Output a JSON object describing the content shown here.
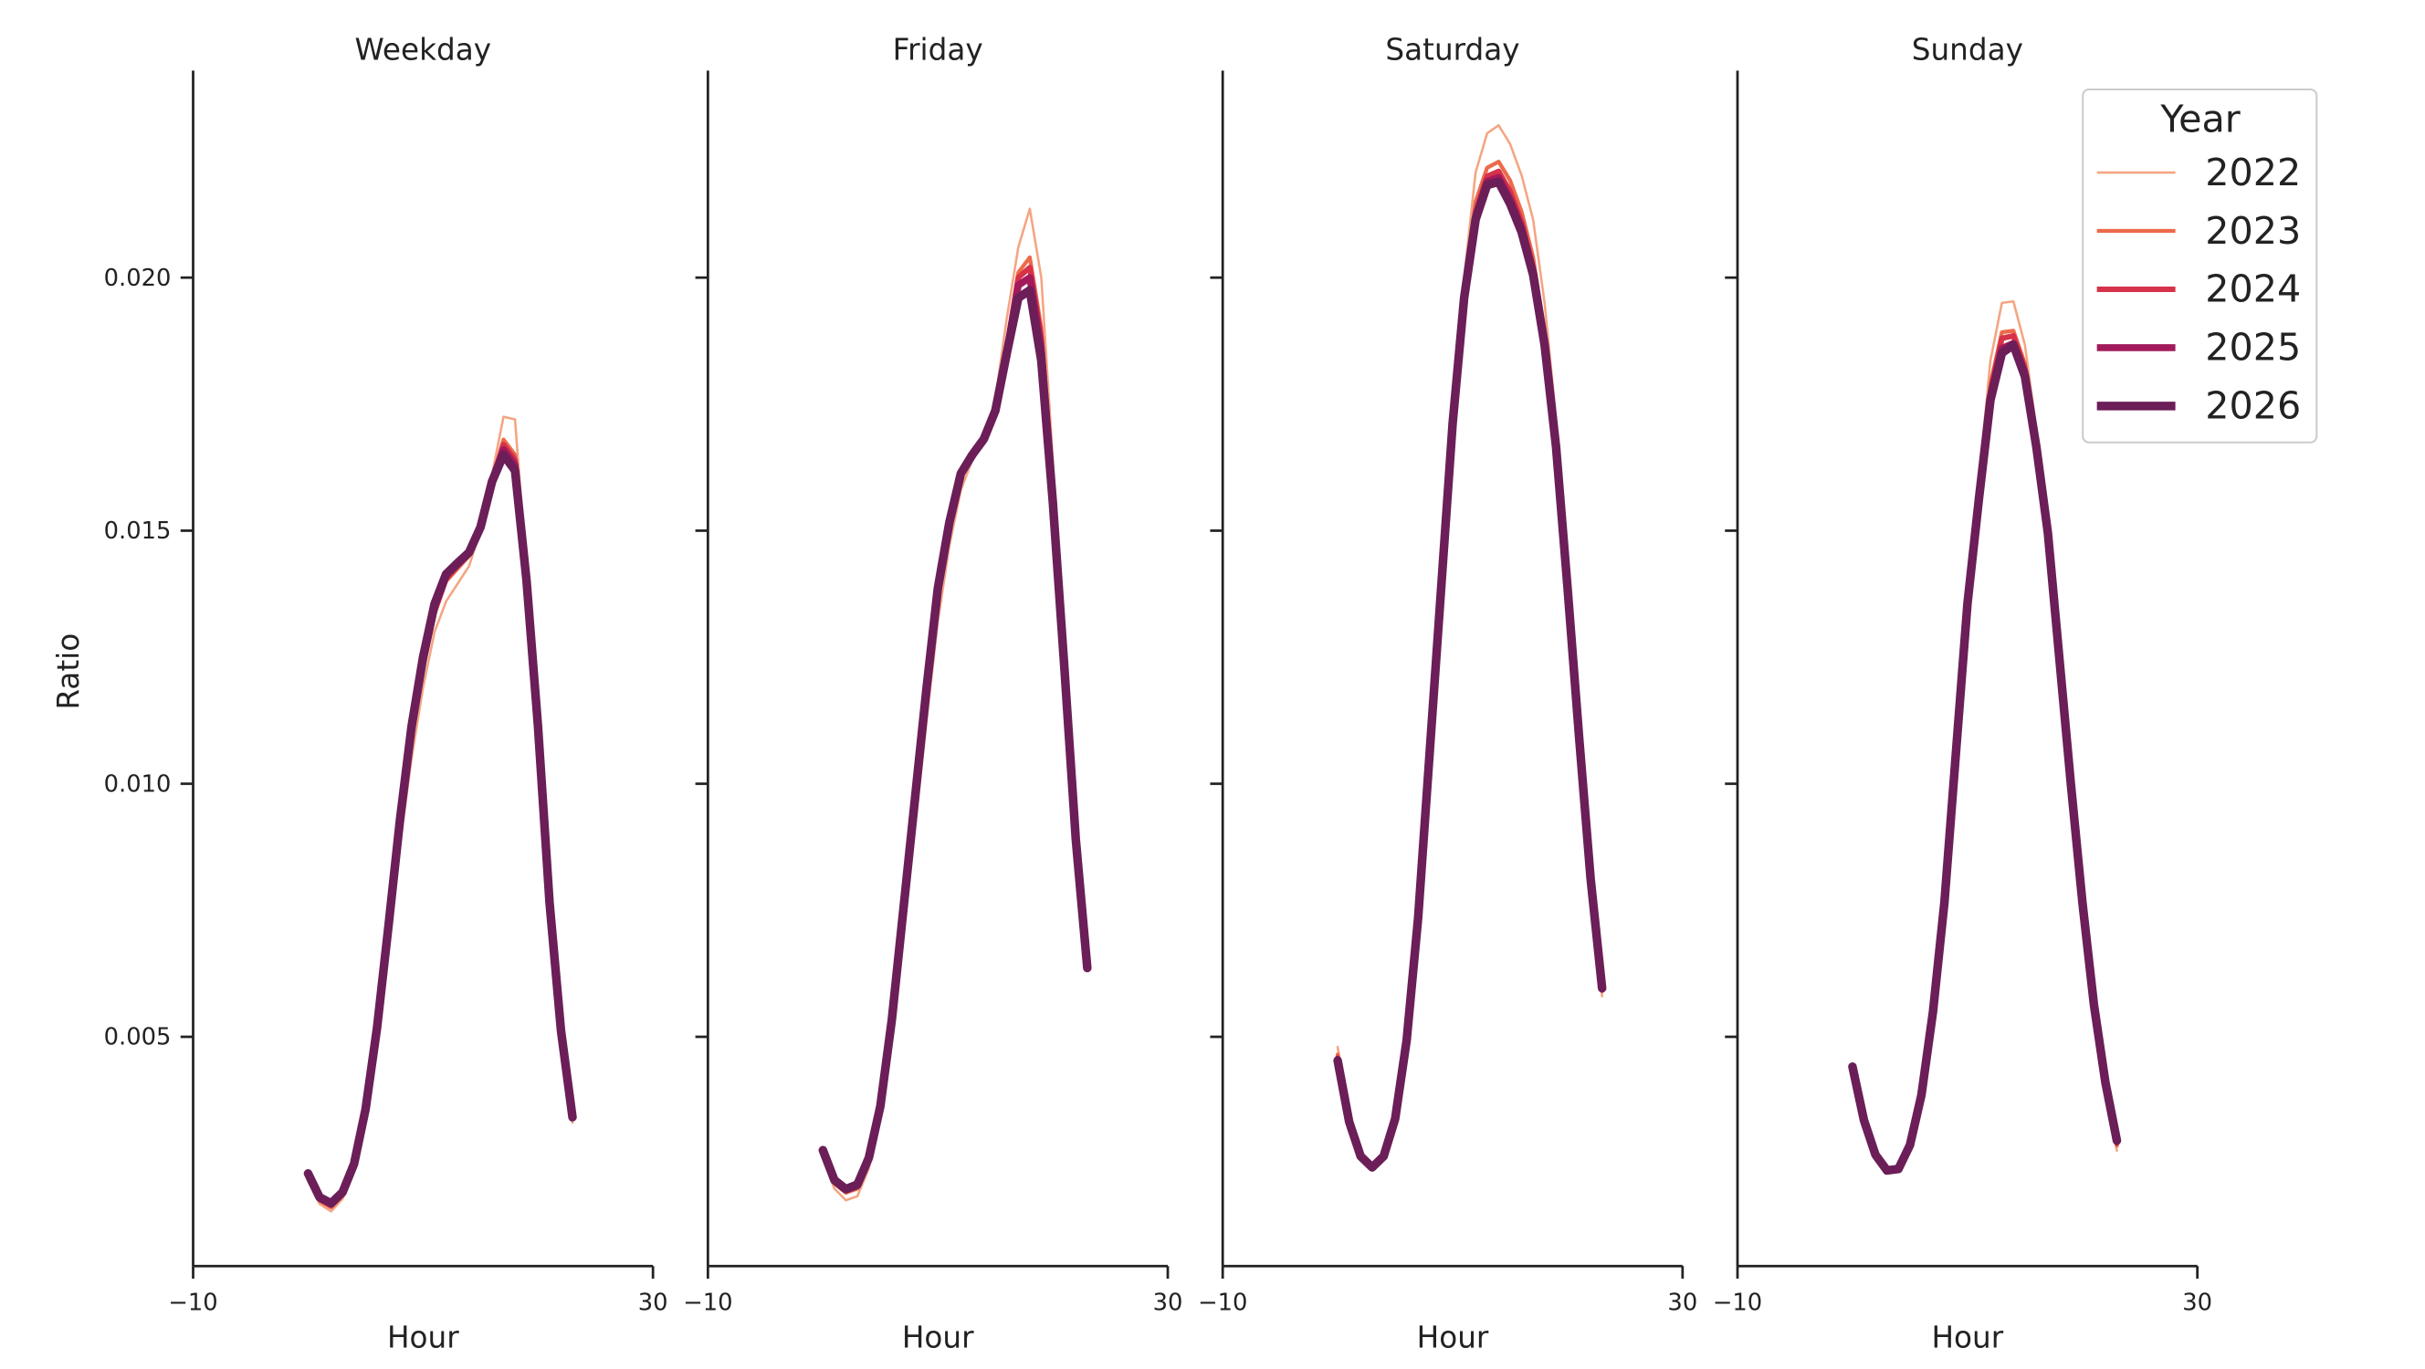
{
  "chart_data": [
    {
      "type": "line",
      "title": "Weekday",
      "xlabel": "Hour",
      "ylabel": "Ratio",
      "x": [
        0,
        1,
        2,
        3,
        4,
        5,
        6,
        7,
        8,
        9,
        10,
        11,
        12,
        13,
        14,
        15,
        16,
        17,
        18,
        19,
        20,
        21,
        22,
        23
      ],
      "xlim": [
        -10,
        30
      ],
      "xticks": [
        {
          "value": -10,
          "label": "−10"
        },
        30
      ],
      "ylim": [
        0.00047,
        0.02409
      ],
      "yticks": [
        0.005,
        {
          "value": 0.01,
          "label": "0.010"
        },
        0.015,
        {
          "value": 0.02,
          "label": "0.020"
        }
      ],
      "series": [
        {
          "name": "2022",
          "color": "#f4a582",
          "values": [
            0.00215,
            0.0017,
            0.00155,
            0.0018,
            0.00235,
            0.0034,
            0.0049,
            0.0068,
            0.0088,
            0.0105,
            0.0119,
            0.013,
            0.0136,
            0.01395,
            0.0143,
            0.015,
            0.0161,
            0.01725,
            0.0172,
            0.0142,
            0.0112,
            0.0077,
            0.0051,
            0.0033
          ]
        },
        {
          "name": "2023",
          "color": "#ec6a4b",
          "values": [
            0.00222,
            0.00176,
            0.00163,
            0.00186,
            0.00242,
            0.0035,
            0.00505,
            0.007,
            0.00905,
            0.01085,
            0.01225,
            0.01335,
            0.014,
            0.01425,
            0.0145,
            0.01505,
            0.016,
            0.0168,
            0.0165,
            0.0141,
            0.01115,
            0.00768,
            0.00512,
            0.00338
          ]
        },
        {
          "name": "2024",
          "color": "#d6324a",
          "values": [
            0.00226,
            0.0018,
            0.00167,
            0.0019,
            0.00246,
            0.00354,
            0.00512,
            0.00712,
            0.0092,
            0.011,
            0.01235,
            0.0134,
            0.01405,
            0.0143,
            0.01455,
            0.01506,
            0.01598,
            0.0167,
            0.0164,
            0.01405,
            0.01114,
            0.00767,
            0.00512,
            0.0034
          ]
        },
        {
          "name": "2025",
          "color": "#a21a5b",
          "values": [
            0.00228,
            0.00182,
            0.0017,
            0.00192,
            0.00248,
            0.00356,
            0.00516,
            0.00718,
            0.00928,
            0.0111,
            0.01245,
            0.0135,
            0.01412,
            0.01434,
            0.01456,
            0.01507,
            0.016,
            0.0166,
            0.0163,
            0.01403,
            0.01113,
            0.00766,
            0.00512,
            0.00341
          ]
        },
        {
          "name": "2026",
          "color": "#6b1e58",
          "values": [
            0.0023,
            0.00183,
            0.00171,
            0.00193,
            0.00249,
            0.00357,
            0.00518,
            0.0072,
            0.0093,
            0.01113,
            0.0125,
            0.01355,
            0.01414,
            0.01436,
            0.01457,
            0.01507,
            0.01597,
            0.0165,
            0.01619,
            0.01402,
            0.01113,
            0.00766,
            0.00512,
            0.00341
          ]
        }
      ]
    },
    {
      "type": "line",
      "title": "Friday",
      "xlabel": "Hour",
      "x": [
        0,
        1,
        2,
        3,
        4,
        5,
        6,
        7,
        8,
        9,
        10,
        11,
        12,
        13,
        14,
        15,
        16,
        17,
        18,
        19,
        20,
        21,
        22,
        23
      ],
      "xlim": [
        -10,
        30
      ],
      "xticks": [
        {
          "value": -10,
          "label": "−10"
        },
        30
      ],
      "series": [
        {
          "name": "2022",
          "color": "#f4a582",
          "values": [
            0.0026,
            0.002,
            0.00177,
            0.00185,
            0.0024,
            0.0034,
            0.00495,
            0.007,
            0.0091,
            0.0112,
            0.0132,
            0.0147,
            0.0158,
            0.0164,
            0.0168,
            0.0176,
            0.0192,
            0.0206,
            0.02136,
            0.02,
            0.0164,
            0.0127,
            0.0091,
            0.0064
          ]
        },
        {
          "name": "2023",
          "color": "#ec6a4b",
          "values": [
            0.0027,
            0.0021,
            0.00192,
            0.002,
            0.00254,
            0.00356,
            0.0052,
            0.00735,
            0.0095,
            0.01165,
            0.0137,
            0.01505,
            0.01605,
            0.01648,
            0.01681,
            0.01745,
            0.0187,
            0.0201,
            0.0204,
            0.019,
            0.0158,
            0.0124,
            0.00895,
            0.00637
          ]
        },
        {
          "name": "2024",
          "color": "#d6324a",
          "values": [
            0.00273,
            0.00214,
            0.00196,
            0.00204,
            0.00258,
            0.0036,
            0.00528,
            0.00744,
            0.0096,
            0.01176,
            0.01379,
            0.01511,
            0.0161,
            0.0165,
            0.01681,
            0.0174,
            0.0186,
            0.02,
            0.0202,
            0.0188,
            0.0157,
            0.01235,
            0.00892,
            0.00636
          ]
        },
        {
          "name": "2025",
          "color": "#a21a5b",
          "values": [
            0.00275,
            0.00216,
            0.00198,
            0.00206,
            0.0026,
            0.00362,
            0.00532,
            0.00748,
            0.00965,
            0.01182,
            0.01384,
            0.01514,
            0.01612,
            0.0165,
            0.01681,
            0.01738,
            0.01855,
            0.01985,
            0.02,
            0.0186,
            0.01562,
            0.01232,
            0.00891,
            0.00636
          ]
        },
        {
          "name": "2026",
          "color": "#6b1e58",
          "values": [
            0.00276,
            0.00217,
            0.00199,
            0.00208,
            0.00261,
            0.00363,
            0.00534,
            0.00751,
            0.00968,
            0.01185,
            0.01386,
            0.01516,
            0.01613,
            0.0165,
            0.01681,
            0.01737,
            0.01851,
            0.0196,
            0.01975,
            0.01836,
            0.01557,
            0.01231,
            0.0089,
            0.00636
          ]
        }
      ]
    },
    {
      "type": "line",
      "title": "Saturday",
      "xlabel": "Hour",
      "x": [
        0,
        1,
        2,
        3,
        4,
        5,
        6,
        7,
        8,
        9,
        10,
        11,
        12,
        13,
        14,
        15,
        16,
        17,
        18,
        19,
        20,
        21,
        22,
        23
      ],
      "xlim": [
        -10,
        30
      ],
      "xticks": [
        {
          "value": -10,
          "label": "−10"
        },
        30
      ],
      "series": [
        {
          "name": "2022",
          "color": "#f4a582",
          "values": [
            0.0048,
            0.0034,
            0.00268,
            0.00245,
            0.00266,
            0.0034,
            0.00495,
            0.00738,
            0.01065,
            0.01392,
            0.0173,
            0.02,
            0.02208,
            0.02285,
            0.02301,
            0.02264,
            0.02202,
            0.02115,
            0.0195,
            0.0172,
            0.0141,
            0.011,
            0.0081,
            0.0058
          ]
        },
        {
          "name": "2023",
          "color": "#ec6a4b",
          "values": [
            0.00465,
            0.00336,
            0.00266,
            0.00243,
            0.00265,
            0.00339,
            0.00494,
            0.00736,
            0.01063,
            0.01389,
            0.0172,
            0.01975,
            0.0215,
            0.02217,
            0.02229,
            0.02192,
            0.0213,
            0.0204,
            0.0189,
            0.0168,
            0.01392,
            0.01095,
            0.00812,
            0.0059
          ]
        },
        {
          "name": "2024",
          "color": "#d6324a",
          "values": [
            0.00458,
            0.00334,
            0.00265,
            0.00242,
            0.00264,
            0.00338,
            0.00493,
            0.00735,
            0.01062,
            0.01387,
            0.01715,
            0.01965,
            0.0213,
            0.022,
            0.0221,
            0.0217,
            0.0211,
            0.0202,
            0.01875,
            0.0167,
            0.01388,
            0.01093,
            0.00813,
            0.00594
          ]
        },
        {
          "name": "2025",
          "color": "#a21a5b",
          "values": [
            0.00455,
            0.00333,
            0.00264,
            0.00242,
            0.00264,
            0.00338,
            0.00493,
            0.00735,
            0.01061,
            0.01386,
            0.01713,
            0.01962,
            0.0212,
            0.0219,
            0.02198,
            0.02155,
            0.02098,
            0.02012,
            0.0187,
            0.01667,
            0.01387,
            0.01092,
            0.00813,
            0.00595
          ]
        },
        {
          "name": "2026",
          "color": "#6b1e58",
          "values": [
            0.00453,
            0.00332,
            0.00264,
            0.00242,
            0.00264,
            0.00338,
            0.00493,
            0.00735,
            0.01061,
            0.01386,
            0.01712,
            0.0196,
            0.02115,
            0.02183,
            0.02189,
            0.02146,
            0.0209,
            0.02006,
            0.01867,
            0.01665,
            0.01386,
            0.01092,
            0.00813,
            0.00596
          ]
        }
      ]
    },
    {
      "type": "line",
      "title": "Sunday",
      "xlabel": "Hour",
      "legend_title": "Year",
      "x": [
        0,
        1,
        2,
        3,
        4,
        5,
        6,
        7,
        8,
        9,
        10,
        11,
        12,
        13,
        14,
        15,
        16,
        17,
        18,
        19,
        20,
        21,
        22,
        23
      ],
      "xlim": [
        -10,
        30
      ],
      "xticks": [
        {
          "value": -10,
          "label": "−10"
        },
        30
      ],
      "series": [
        {
          "name": "2022",
          "color": "#f4a582",
          "values": [
            0.00445,
            0.00336,
            0.00267,
            0.00236,
            0.00239,
            0.00286,
            0.00385,
            0.00549,
            0.0077,
            0.0107,
            0.01375,
            0.016,
            0.01836,
            0.0195,
            0.01953,
            0.01867,
            0.017,
            0.0151,
            0.0125,
            0.00995,
            0.0076,
            0.00555,
            0.004,
            0.00275
          ]
        },
        {
          "name": "2023",
          "color": "#ec6a4b",
          "values": [
            0.00443,
            0.00335,
            0.00267,
            0.00236,
            0.00239,
            0.00286,
            0.00385,
            0.00549,
            0.00768,
            0.01065,
            0.01365,
            0.0158,
            0.0179,
            0.01892,
            0.01895,
            0.0183,
            0.0168,
            0.015,
            0.01248,
            0.00997,
            0.00763,
            0.0056,
            0.00405,
            0.00285
          ]
        },
        {
          "name": "2024",
          "color": "#d6324a",
          "values": [
            0.00442,
            0.00335,
            0.00267,
            0.00236,
            0.00239,
            0.00286,
            0.00385,
            0.00549,
            0.00767,
            0.01063,
            0.0136,
            0.0157,
            0.01775,
            0.0188,
            0.01885,
            0.0182,
            0.01672,
            0.01497,
            0.01247,
            0.00998,
            0.00765,
            0.00562,
            0.00408,
            0.0029
          ]
        },
        {
          "name": "2025",
          "color": "#a21a5b",
          "values": [
            0.00441,
            0.00335,
            0.00267,
            0.00236,
            0.00239,
            0.00286,
            0.00385,
            0.00549,
            0.00766,
            0.01062,
            0.01357,
            0.01566,
            0.01765,
            0.0186,
            0.0187,
            0.01812,
            0.01668,
            0.01496,
            0.01247,
            0.00999,
            0.00766,
            0.00563,
            0.00409,
            0.00293
          ]
        },
        {
          "name": "2026",
          "color": "#6b1e58",
          "values": [
            0.00441,
            0.00335,
            0.00267,
            0.00236,
            0.00239,
            0.00286,
            0.00385,
            0.00549,
            0.00766,
            0.01061,
            0.01355,
            0.01563,
            0.01758,
            0.01851,
            0.01867,
            0.01805,
            0.01665,
            0.01495,
            0.01247,
            0.00999,
            0.00766,
            0.00564,
            0.0041,
            0.00295
          ]
        }
      ]
    }
  ]
}
